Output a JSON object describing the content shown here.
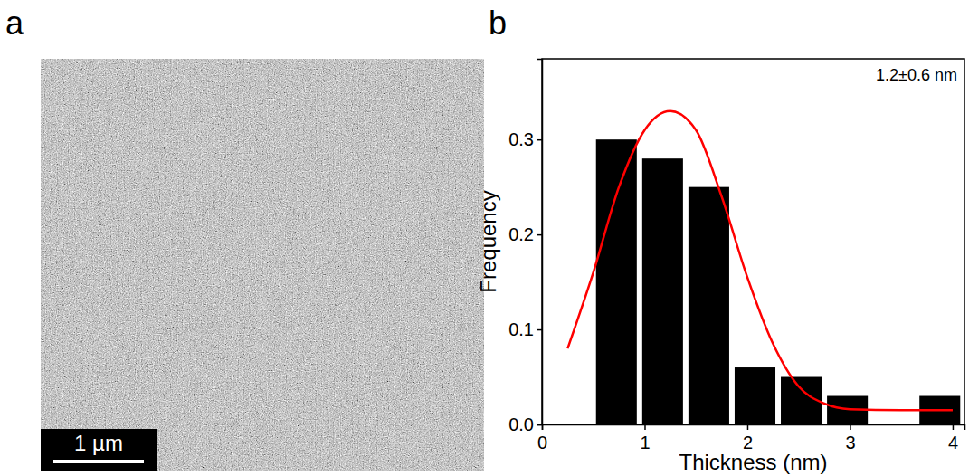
{
  "panel_labels": [
    "a",
    "b"
  ],
  "image": {
    "scale_bar": "1 µm"
  },
  "chart_data": {
    "type": "histogram",
    "x_label": "Thickness (nm)",
    "y_label": "Frequency",
    "annotations": [
      "1.2±0.6 nm"
    ],
    "bins": [
      0.5,
      0.95,
      1.4,
      1.85,
      2.3,
      2.75,
      3.2,
      3.65,
      4.1
    ],
    "series": [
      {
        "type": "bar",
        "color": "#000000",
        "values": [
          0.3,
          0.28,
          0.25,
          0.06,
          0.05,
          0.03,
          0,
          0.03
        ]
      },
      {
        "type": "line",
        "color": "#ff0000",
        "x": [
          0.25,
          0.5,
          0.75,
          1.0,
          1.25,
          1.5,
          1.75,
          2.0,
          2.25,
          2.5,
          2.75,
          3.0,
          3.5,
          4.0
        ],
        "values": [
          0.08,
          0.16,
          0.25,
          0.31,
          0.33,
          0.31,
          0.24,
          0.155,
          0.085,
          0.04,
          0.022,
          0.016,
          0.015,
          0.015
        ]
      }
    ],
    "xlim": [
      0,
      4.115
    ],
    "ylim": [
      0,
      0.385
    ],
    "xticks": [
      0,
      1,
      2,
      3,
      4
    ],
    "yticks": [
      {
        "value": 0,
        "label": "0.0"
      },
      0.1,
      0.2,
      0.3
    ]
  }
}
